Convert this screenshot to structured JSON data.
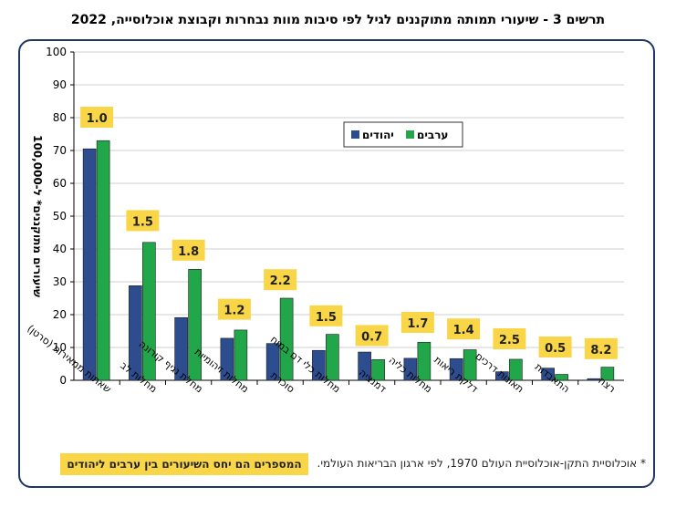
{
  "chart_data": {
    "type": "bar",
    "title": "תרשים 3 - שיעורי תמותה מתוקננים לגיל לפי סיבות מוות נבחרות וקבוצת אוכלוסייה, 2022",
    "ylabel": "שיעורים מתוקננים* ל-100,000",
    "ylim": [
      0,
      100
    ],
    "yticks": [
      0,
      10,
      20,
      30,
      40,
      50,
      60,
      70,
      80,
      90,
      100
    ],
    "categories": [
      "שאתות ממאירות (סרטן)",
      "מחלות לב",
      "מחלת נגיף קורונה",
      "מחלות זיהומיות",
      "סוכרת",
      "מחלות כלי דם במוח",
      "דמנציה",
      "מחלות כליה",
      "דלקת ריאות",
      "תאונות דרכים",
      "התאבדות",
      "רצח"
    ],
    "series": [
      {
        "name": "יהודים",
        "color": "#2e4d8f",
        "values": [
          70.5,
          28.8,
          19.1,
          12.8,
          11.2,
          9.1,
          8.6,
          6.7,
          6.6,
          2.6,
          3.7,
          0.5
        ]
      },
      {
        "name": "ערבים",
        "color": "#22a64a",
        "values": [
          73.0,
          42.0,
          33.8,
          15.3,
          25.0,
          14.0,
          6.3,
          11.6,
          9.3,
          6.4,
          1.8,
          4.0
        ]
      }
    ],
    "ratio_labels": [
      "1.0",
      "1.5",
      "1.8",
      "1.2",
      "2.2",
      "1.5",
      "0.7",
      "1.7",
      "1.4",
      "2.5",
      "0.5",
      "8.2"
    ],
    "ratio_label_values": [
      80,
      48.5,
      39.5,
      21.5,
      30.5,
      19.5,
      13.5,
      17.5,
      15.5,
      12.5,
      10,
      9.5
    ],
    "legend_position": "top-right",
    "grid": true
  },
  "notes": {
    "ratio_note": "המספרים הם יחס השיעורים בין ערבים ליהודים",
    "footnote": "* אוכלוסיית התקן-אוכלוסיית העולם 1970, לפי ארגון הבריאות העולמי."
  },
  "colors": {
    "frame": "#1f3763",
    "label_bg": "#f9d548",
    "grid": "#cfcfcf"
  }
}
